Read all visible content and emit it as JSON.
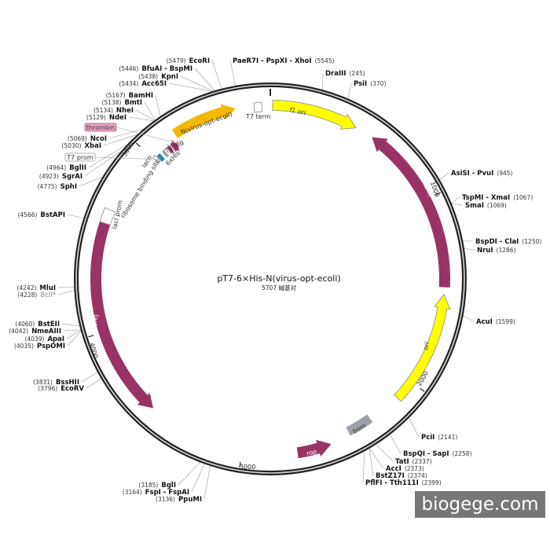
{
  "map": {
    "title": "pT7-6×His-N(virus-opt-ecoli)",
    "size_label": "5707 碱基对",
    "total_bp": 5707
  },
  "ticks": [
    {
      "bp": 1000,
      "label": "1000"
    },
    {
      "bp": 2000,
      "label": "2000"
    },
    {
      "bp": 3000,
      "label": "3000"
    },
    {
      "bp": 4000,
      "label": "4000"
    },
    {
      "bp": 5000,
      "label": "5000"
    }
  ],
  "sites": [
    {
      "name": "PaeR7I - PspXI - XhoI",
      "pos": 5545
    },
    {
      "name": "DraIII",
      "pos": 245
    },
    {
      "name": "PsiI",
      "pos": 370
    },
    {
      "name": "AsiSI - PvuI",
      "pos": 945
    },
    {
      "name": "TspMI - XmaI",
      "pos": 1067
    },
    {
      "name": "SmaI",
      "pos": 1069
    },
    {
      "name": "BspDI - ClaI",
      "pos": 1250
    },
    {
      "name": "NruI",
      "pos": 1286
    },
    {
      "name": "AcuI",
      "pos": 1599
    },
    {
      "name": "PciI",
      "pos": 2141
    },
    {
      "name": "BspQI - SapI",
      "pos": 2258
    },
    {
      "name": "TatI",
      "pos": 2337
    },
    {
      "name": "AccI",
      "pos": 2373
    },
    {
      "name": "BstZ17I",
      "pos": 2374
    },
    {
      "name": "PflFI - Tth111I",
      "pos": 2399
    },
    {
      "name": "EcoRI",
      "pos": 5479
    },
    {
      "name": "BfuAI - BspMI",
      "pos": 5446
    },
    {
      "name": "KpnI",
      "pos": 5438
    },
    {
      "name": "Acc65I",
      "pos": 5434
    },
    {
      "name": "BamHI",
      "pos": 5167
    },
    {
      "name": "BmtI",
      "pos": 5138
    },
    {
      "name": "NheI",
      "pos": 5134
    },
    {
      "name": "NdeI",
      "pos": 5129
    },
    {
      "name": "NcoI",
      "pos": 5069
    },
    {
      "name": "XbaI",
      "pos": 5030
    },
    {
      "name": "BglII",
      "pos": 4964
    },
    {
      "name": "SgrAI",
      "pos": 4923
    },
    {
      "name": "SphI",
      "pos": 4775
    },
    {
      "name": "BstAPI",
      "pos": 4566
    },
    {
      "name": "MluI",
      "pos": 4242
    },
    {
      "name": "BclI*",
      "pos": 4228,
      "methylation_blocked": true
    },
    {
      "name": "BstEII",
      "pos": 4060
    },
    {
      "name": "NmeAIII",
      "pos": 4042
    },
    {
      "name": "ApaI",
      "pos": 4039
    },
    {
      "name": "PspOMI",
      "pos": 4035
    },
    {
      "name": "BssHII",
      "pos": 3831
    },
    {
      "name": "EcoRV",
      "pos": 3796
    },
    {
      "name": "BglI",
      "pos": 3185
    },
    {
      "name": "FspI - FspAI",
      "pos": 3164
    },
    {
      "name": "PpuMI",
      "pos": 3136
    }
  ],
  "features": [
    {
      "name": "f1 ori",
      "start": 12,
      "end": 468,
      "direction": "forward",
      "color": "#ffff00"
    },
    {
      "name": "KanR",
      "start": 565,
      "end": 1470,
      "direction": "reverse",
      "color": "#993366"
    },
    {
      "name": "ori",
      "start": 1508,
      "end": 2110,
      "direction": "reverse",
      "color": "#ffff00"
    },
    {
      "name": "bom",
      "start": 2290,
      "end": 2425,
      "direction": "none",
      "color": "#9aa0a8"
    },
    {
      "name": "rop",
      "start": 2532,
      "end": 2712,
      "direction": "reverse",
      "color": "#993366"
    },
    {
      "name": "lacI",
      "start": 3522,
      "end": 4575,
      "direction": "reverse",
      "color": "#993366"
    },
    {
      "name": "lacI prom",
      "start": 4575,
      "end": 4650,
      "direction": "none",
      "color": "#ffffff"
    },
    {
      "name": "T7 prom",
      "start": 5008,
      "end": 5026,
      "direction": "none",
      "color": "#ffffff"
    },
    {
      "name": "laco",
      "start": 5030,
      "end": 5052,
      "direction": "none",
      "color": "#2a8aa0"
    },
    {
      "name": "ribosome binding site",
      "start": 5066,
      "end": 5082,
      "direction": "none",
      "color": "#9aa0a8"
    },
    {
      "name": "6xHis",
      "start": 5100,
      "end": 5122,
      "direction": "forward",
      "color": "#993366"
    },
    {
      "name": "T7 tag",
      "start": 5126,
      "end": 5160,
      "direction": "forward",
      "color": "#993366"
    },
    {
      "name": "thrombin",
      "start": 5160,
      "end": 5172,
      "direction": "none",
      "color": "#e8a6c6"
    },
    {
      "name": "N(virus-opt-ecoli)",
      "start": 5178,
      "end": 5525,
      "direction": "forward",
      "color": "#f5b800"
    },
    {
      "name": "T7 term",
      "start": 5622,
      "end": 5662,
      "direction": "none",
      "color": "#ffffff"
    }
  ],
  "watermark": "biogege.com"
}
